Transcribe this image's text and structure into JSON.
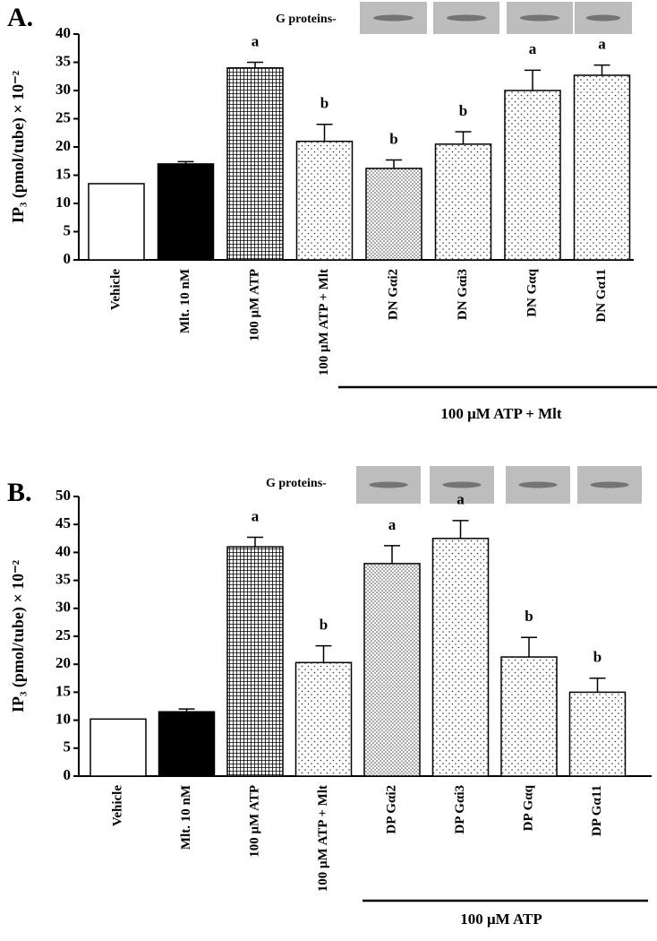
{
  "chart_data": [
    {
      "type": "bar",
      "panel_label": "A.",
      "ylabel": "IP₃ (pmol/tube) × 10⁻²",
      "blot_label": "G proteins-",
      "categories": [
        "Vehicle",
        "Mlt. 10 nM",
        "100 μM ATP",
        "100 μM ATP + Mlt",
        "DN Gαi2",
        "DN Gαi3",
        "DN Gαq",
        "DN Gα11"
      ],
      "values": [
        13.5,
        17,
        34,
        21,
        16.2,
        20.5,
        30,
        32.7
      ],
      "errors": [
        null,
        0.4,
        1,
        3,
        1.5,
        2.2,
        3.6,
        1.8
      ],
      "annotations": [
        null,
        null,
        "a",
        "b",
        "b",
        "b",
        "a",
        "a"
      ],
      "fills": [
        "white",
        "black",
        "grid",
        "dots",
        "dense-dots",
        "dots",
        "dots",
        "dots"
      ],
      "group_label": "100 μM ATP + Mlt",
      "ylim": [
        0,
        40
      ],
      "yticks": [
        0,
        5,
        10,
        15,
        20,
        25,
        30,
        35,
        40
      ]
    },
    {
      "type": "bar",
      "panel_label": "B.",
      "ylabel": "IP₃ (pmol/tube) × 10⁻²",
      "blot_label": "G proteins-",
      "categories": [
        "Vehicle",
        "Mlt. 10 nM",
        "100 μM ATP",
        "100 μM ATP + Mlt",
        "DP Gαi2",
        "DP Gαi3",
        "DP Gαq",
        "DP Gα11"
      ],
      "values": [
        10.2,
        11.5,
        41,
        20.3,
        38,
        42.5,
        21.3,
        15
      ],
      "errors": [
        null,
        0.5,
        1.7,
        3,
        3.2,
        3.2,
        3.5,
        2.5
      ],
      "annotations": [
        null,
        null,
        "a",
        "b",
        "a",
        "a",
        "b",
        "b"
      ],
      "fills": [
        "white",
        "black",
        "grid",
        "dots",
        "dense-dots",
        "dots",
        "dots",
        "dots"
      ],
      "group_label": "100 μM ATP",
      "ylim": [
        0,
        50
      ],
      "yticks": [
        0,
        5,
        10,
        15,
        20,
        25,
        30,
        35,
        40,
        45,
        50
      ]
    }
  ]
}
